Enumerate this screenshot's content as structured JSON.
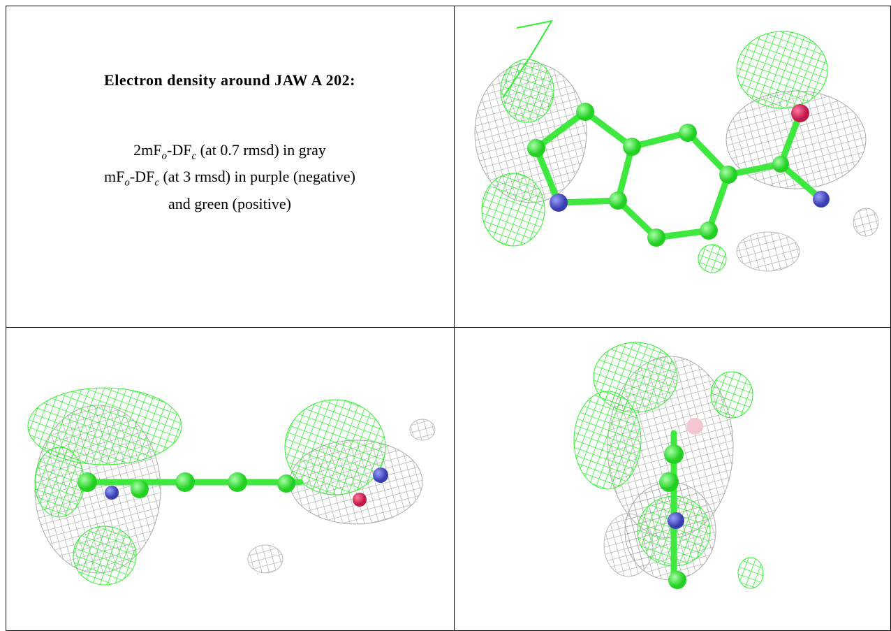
{
  "header": {
    "title": "Electron density around JAW A 202:"
  },
  "caption": {
    "lines": [
      [
        {
          "text": "2mF"
        },
        {
          "sub": "o"
        },
        {
          "text": "-DF"
        },
        {
          "sub": "c"
        },
        {
          "text": " (at 0.7 rmsd) in gray"
        }
      ],
      [
        {
          "text": "mF"
        },
        {
          "sub": "o"
        },
        {
          "text": "-DF"
        },
        {
          "sub": "c"
        },
        {
          "text": " (at 3 rmsd) in purple (negative)"
        }
      ],
      [
        {
          "text": "and green (positive)"
        }
      ]
    ]
  }
}
